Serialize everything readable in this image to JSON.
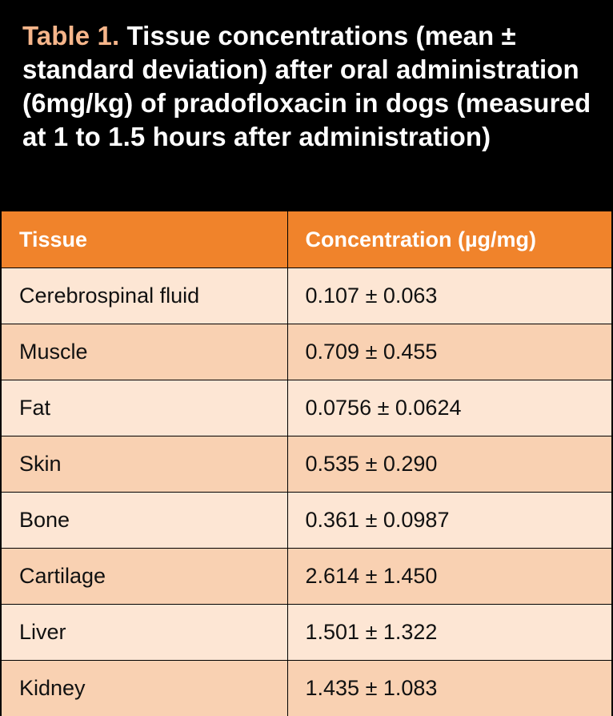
{
  "caption": {
    "label": "Table 1.",
    "text": "Tissue concentrations (mean ± standard deviation) after oral administration (6mg/kg) of pradofloxacin in dogs (measured at 1 to 1.5 hours after administration)"
  },
  "table": {
    "headers": [
      "Tissue",
      "Concentration (µg/mg)"
    ],
    "rows": [
      [
        "Cerebrospinal fluid",
        "0.107 ± 0.063"
      ],
      [
        "Muscle",
        "0.709 ± 0.455"
      ],
      [
        "Fat",
        "0.0756 ± 0.0624"
      ],
      [
        "Skin",
        "0.535 ± 0.290"
      ],
      [
        "Bone",
        "0.361 ± 0.0987"
      ],
      [
        "Cartilage",
        "2.614 ± 1.450"
      ],
      [
        "Liver",
        "1.501 ± 1.322"
      ],
      [
        "Kidney",
        "1.435 ± 1.083"
      ]
    ]
  },
  "colors": {
    "caption_background": "#000000",
    "caption_label": "#f6b58a",
    "header_background": "#f0832b",
    "row_light": "#fde6d4",
    "row_dark": "#f9d1b2"
  }
}
